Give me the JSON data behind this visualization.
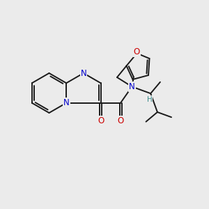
{
  "background_color": "#ebebeb",
  "bond_color": "#1a1a1a",
  "bond_width": 1.4,
  "atom_colors": {
    "N": "#0000cc",
    "O": "#cc0000",
    "H": "#3a8a8a",
    "C": "#1a1a1a"
  },
  "font_size_atom": 8.5,
  "font_size_H": 7.5,
  "xlim": [
    0,
    10
  ],
  "ylim": [
    0,
    10
  ]
}
